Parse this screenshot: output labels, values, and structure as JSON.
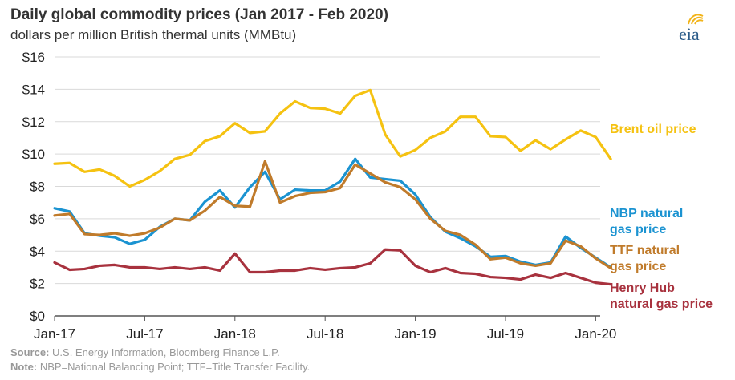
{
  "header": {
    "title": "Daily global commodity prices (Jan 2017 - Feb 2020)",
    "subtitle": "dollars per million British thermal units (MMBtu)"
  },
  "logo": {
    "text": "eia",
    "color": "#2b5c8a",
    "accent": "#f2b41a"
  },
  "footer": {
    "source_label": "Source:",
    "source_text": " U.S. Energy Information, Bloomberg Finance L.P.",
    "note_label": "Note:",
    "note_text": " NBP=National Balancing Point; TTF=Title Transfer Facility."
  },
  "chart_data": {
    "type": "line",
    "title": "Daily global commodity prices (Jan 2017 - Feb 2020)",
    "ylabel": "dollars per million British thermal units (MMBtu)",
    "ylim": [
      0,
      16
    ],
    "yticks": [
      "$0",
      "$2",
      "$4",
      "$6",
      "$8",
      "$10",
      "$12",
      "$14",
      "$16"
    ],
    "xticks": [
      "Jan-17",
      "Jul-17",
      "Jan-18",
      "Jul-18",
      "Jan-19",
      "Jul-19",
      "Jan-20"
    ],
    "grid": true,
    "legend": "right, inline labels",
    "x": [
      0,
      1,
      2,
      3,
      4,
      5,
      6,
      7,
      8,
      9,
      10,
      11,
      12,
      13,
      14,
      15,
      16,
      17,
      18,
      19,
      20,
      21,
      22,
      23,
      24,
      25,
      26,
      27,
      28,
      29,
      30,
      31,
      32,
      33,
      34,
      35,
      36,
      37
    ],
    "x_start": "Jan-17",
    "x_unit": "month",
    "series": [
      {
        "name": "Brent oil price",
        "label_lines": [
          "Brent oil price"
        ],
        "color": "#f5c211",
        "values": [
          9.4,
          9.45,
          8.9,
          9.05,
          8.65,
          8.0,
          8.4,
          8.95,
          9.7,
          9.95,
          10.8,
          11.1,
          11.9,
          11.3,
          11.4,
          12.5,
          13.25,
          12.85,
          12.8,
          12.5,
          13.6,
          13.95,
          11.2,
          9.85,
          10.25,
          11.0,
          11.4,
          12.3,
          12.3,
          11.1,
          11.05,
          10.2,
          10.85,
          10.3,
          10.9,
          11.45,
          11.05,
          9.7
        ]
      },
      {
        "name": "NBP natural gas price",
        "label_lines": [
          "NBP natural",
          "gas price"
        ],
        "color": "#1b93d1",
        "values": [
          6.65,
          6.45,
          5.1,
          4.95,
          4.85,
          4.45,
          4.7,
          5.5,
          6.0,
          5.9,
          7.05,
          7.75,
          6.7,
          7.95,
          8.9,
          7.2,
          7.8,
          7.75,
          7.75,
          8.3,
          9.7,
          8.55,
          8.45,
          8.35,
          7.5,
          6.1,
          5.2,
          4.8,
          4.3,
          3.65,
          3.7,
          3.35,
          3.15,
          3.3,
          4.9,
          4.2,
          3.6,
          3.0
        ]
      },
      {
        "name": "TTF natural gas price",
        "label_lines": [
          "TTF natural",
          "gas price"
        ],
        "color": "#c07b2b",
        "values": [
          6.2,
          6.3,
          5.05,
          5.0,
          5.1,
          4.95,
          5.1,
          5.45,
          6.0,
          5.9,
          6.5,
          7.35,
          6.8,
          6.75,
          9.55,
          7.0,
          7.4,
          7.6,
          7.65,
          7.9,
          9.35,
          8.8,
          8.25,
          7.95,
          7.2,
          6.0,
          5.25,
          5.0,
          4.4,
          3.5,
          3.6,
          3.25,
          3.1,
          3.25,
          4.65,
          4.3,
          3.55,
          2.95
        ]
      },
      {
        "name": "Henry Hub natural gas price",
        "label_lines": [
          "Henry Hub",
          "natural gas price"
        ],
        "color": "#a8323e",
        "values": [
          3.3,
          2.85,
          2.9,
          3.1,
          3.15,
          3.0,
          3.0,
          2.9,
          3.0,
          2.9,
          3.0,
          2.8,
          3.85,
          2.7,
          2.7,
          2.8,
          2.8,
          2.95,
          2.85,
          2.95,
          3.0,
          3.25,
          4.1,
          4.05,
          3.1,
          2.7,
          2.95,
          2.65,
          2.6,
          2.4,
          2.35,
          2.25,
          2.55,
          2.35,
          2.65,
          2.35,
          2.05,
          1.95
        ]
      }
    ]
  }
}
